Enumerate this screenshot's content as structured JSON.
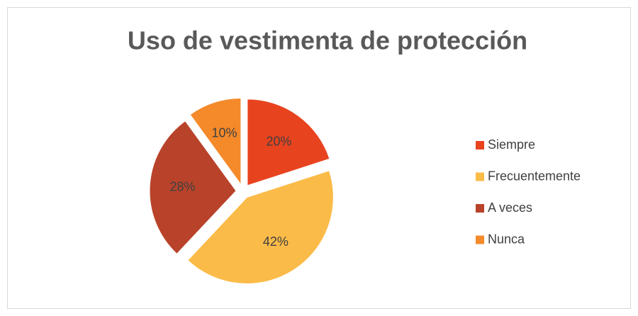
{
  "chart_data": {
    "type": "pie",
    "title": "Uso de vestimenta de protección",
    "categories": [
      "Siempre",
      "Frecuentemente",
      "A veces",
      "Nunca"
    ],
    "values": [
      20,
      42,
      28,
      10
    ],
    "value_labels": [
      "20%",
      "42%",
      "28%",
      "10%"
    ],
    "colors": [
      "#e8431f",
      "#fbbb48",
      "#b8432a",
      "#f58a2b"
    ],
    "legend": "right"
  }
}
